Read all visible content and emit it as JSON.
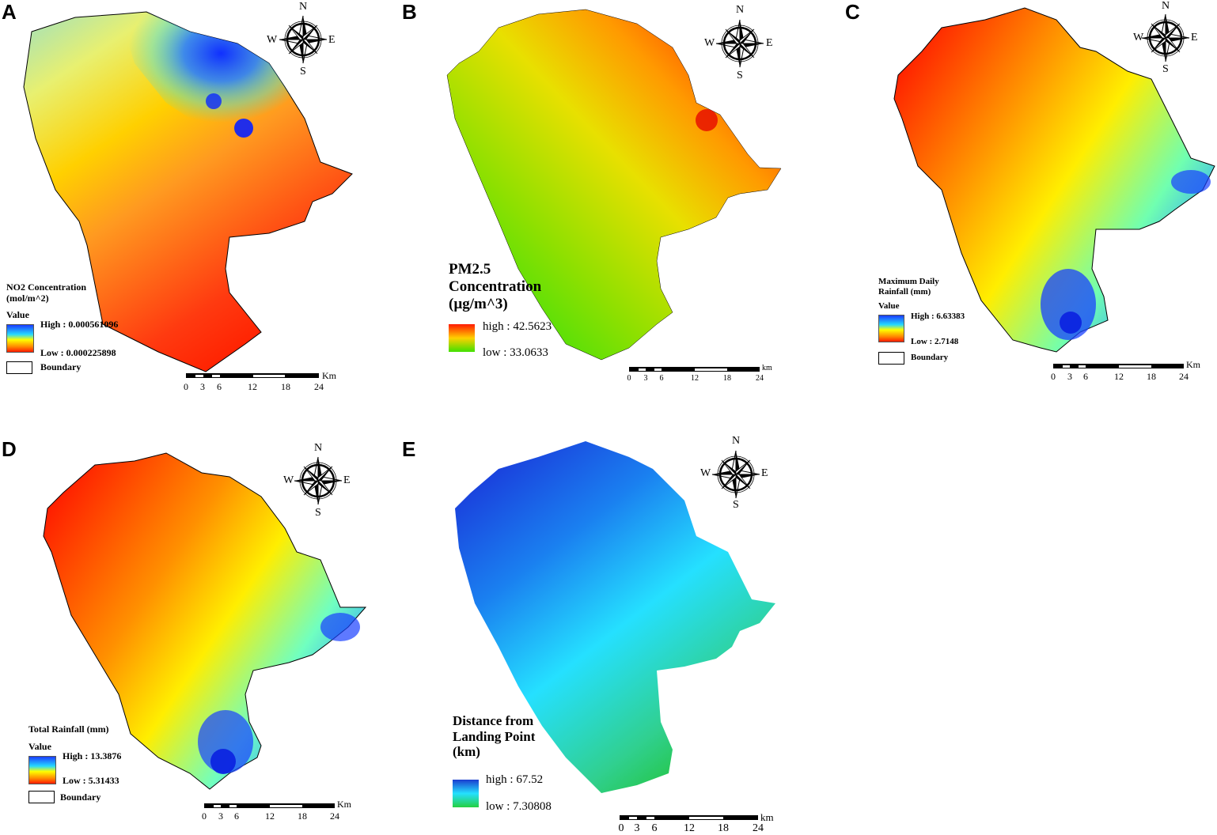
{
  "panels": [
    {
      "id": "A",
      "label": "A",
      "legend": {
        "title": "NO2 Concentration\n(mol/m^2)",
        "value_label": "Value",
        "high": "High : 0.000561096",
        "low": "Low : 0.000225898",
        "boundary": "Boundary"
      },
      "scale": {
        "ticks": [
          "0",
          "3",
          "6",
          "12",
          "18",
          "24"
        ],
        "unit": "Km"
      },
      "compass": {
        "n": "N",
        "s": "S",
        "e": "E",
        "w": "W"
      }
    },
    {
      "id": "B",
      "label": "B",
      "legend": {
        "title": "PM2.5\nConcentration\n(µg/m^3)",
        "high": "high : 42.5623",
        "low": "low : 33.0633"
      },
      "scale": {
        "ticks": [
          "0",
          "3",
          "6",
          "12",
          "18",
          "24"
        ],
        "unit": "km"
      },
      "compass": {
        "n": "N",
        "s": "S",
        "e": "E",
        "w": "W"
      }
    },
    {
      "id": "C",
      "label": "C",
      "legend": {
        "title": "Maximum Daily\nRainfall (mm)",
        "value_label": "Value",
        "high": "High : 6.63383",
        "low": "Low : 2.7148",
        "boundary": "Boundary"
      },
      "scale": {
        "ticks": [
          "0",
          "3",
          "6",
          "12",
          "18",
          "24"
        ],
        "unit": "Km"
      },
      "compass": {
        "n": "N",
        "s": "S",
        "e": "E",
        "w": "W"
      }
    },
    {
      "id": "D",
      "label": "D",
      "legend": {
        "title": "Total Rainfall (mm)",
        "value_label": "Value",
        "high": "High : 13.3876",
        "low": "Low : 5.31433",
        "boundary": "Boundary"
      },
      "scale": {
        "ticks": [
          "0",
          "3",
          "6",
          "12",
          "18",
          "24"
        ],
        "unit": "Km"
      },
      "compass": {
        "n": "N",
        "s": "S",
        "e": "E",
        "w": "W"
      }
    },
    {
      "id": "E",
      "label": "E",
      "legend": {
        "title": "Distance from\nLanding Point\n(km)",
        "high": "high : 67.52",
        "low": "low : 7.30808"
      },
      "scale": {
        "ticks": [
          "0",
          "3",
          "6",
          "12",
          "18",
          "24"
        ],
        "unit": "km"
      },
      "compass": {
        "n": "N",
        "s": "S",
        "e": "E",
        "w": "W"
      }
    }
  ],
  "colors": {
    "ramp_rainbow": [
      "#1a3cff",
      "#25d9ff",
      "#ffff00",
      "#ff8c00",
      "#ff1a00"
    ],
    "ramp_pm": [
      "#ff1a00",
      "#ffd000",
      "#40e000"
    ],
    "ramp_distance": [
      "#1a3cd0",
      "#25e0ff",
      "#25d040"
    ]
  },
  "icons": {
    "compass": "compass-rose-icon"
  }
}
